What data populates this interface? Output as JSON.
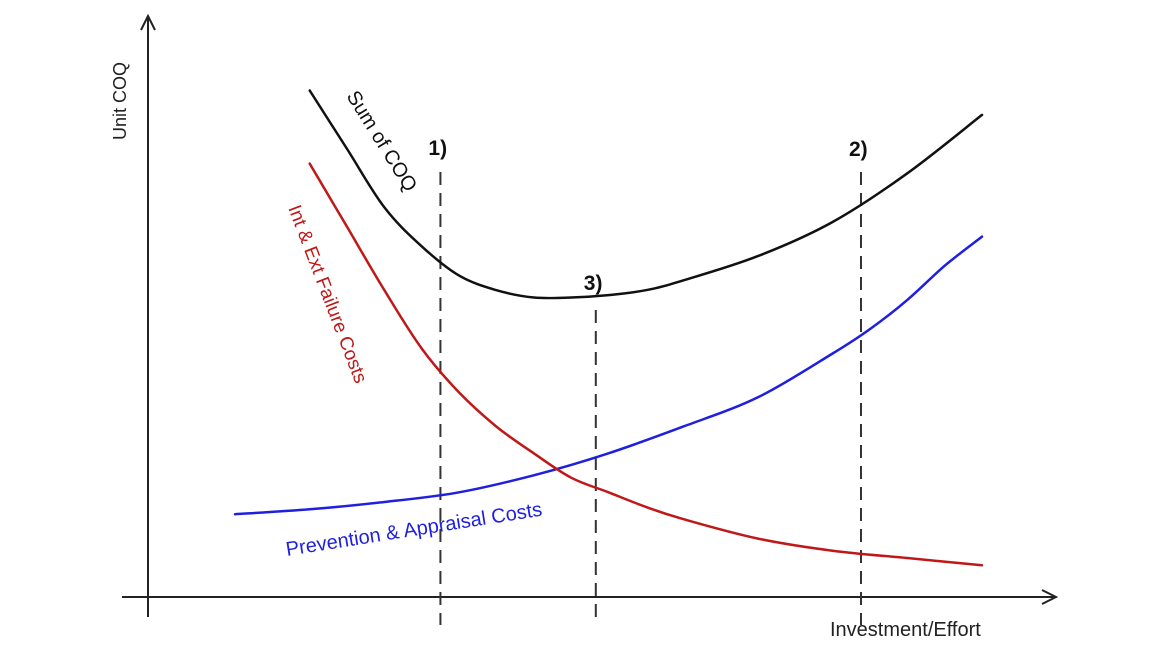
{
  "chart_data": {
    "type": "line",
    "title": "",
    "xlabel": "Investment/Effort",
    "ylabel": "Unit COQ",
    "xlim": [
      0,
      100
    ],
    "ylim": [
      0,
      100
    ],
    "grid": false,
    "legend": "none",
    "series": [
      {
        "name": "Prevention & Appraisal Costs",
        "color": "#1f1fe0",
        "x": [
          0,
          10,
          20,
          30,
          40,
          50,
          60,
          70,
          80,
          85,
          90,
          95,
          100
        ],
        "y": [
          17,
          18,
          19.5,
          21.5,
          25,
          29.5,
          35,
          41,
          50,
          55,
          61,
          68,
          74
        ]
      },
      {
        "name": "Int & Ext Failure Costs",
        "color": "#c01818",
        "x": [
          10,
          15,
          20,
          25,
          30,
          35,
          40,
          45,
          50,
          55,
          60,
          70,
          80,
          90,
          100
        ],
        "y": [
          89,
          76,
          63,
          51,
          42,
          35,
          29.5,
          24.5,
          21.5,
          18.5,
          16,
          12,
          9.5,
          8,
          6.5
        ]
      },
      {
        "name": "Sum of COQ",
        "color": "#111111",
        "x": [
          10,
          15,
          20,
          25,
          30,
          35,
          40,
          45,
          50,
          55,
          60,
          70,
          80,
          90,
          100
        ],
        "y": [
          104,
          92,
          80,
          72,
          66,
          63,
          61.5,
          61.5,
          62,
          63,
          65,
          70,
          77,
          87,
          99
        ]
      }
    ],
    "vlines": [
      {
        "label": "1)",
        "x": 27.5
      },
      {
        "label": "3)",
        "x": 48.3
      },
      {
        "label": "2)",
        "x": 83.8
      }
    ],
    "curve_labels": {
      "prevention": "Prevention  & Appraisal Costs",
      "failure": "Int & Ext Failure Costs",
      "sum": "Sum of COQ"
    }
  }
}
